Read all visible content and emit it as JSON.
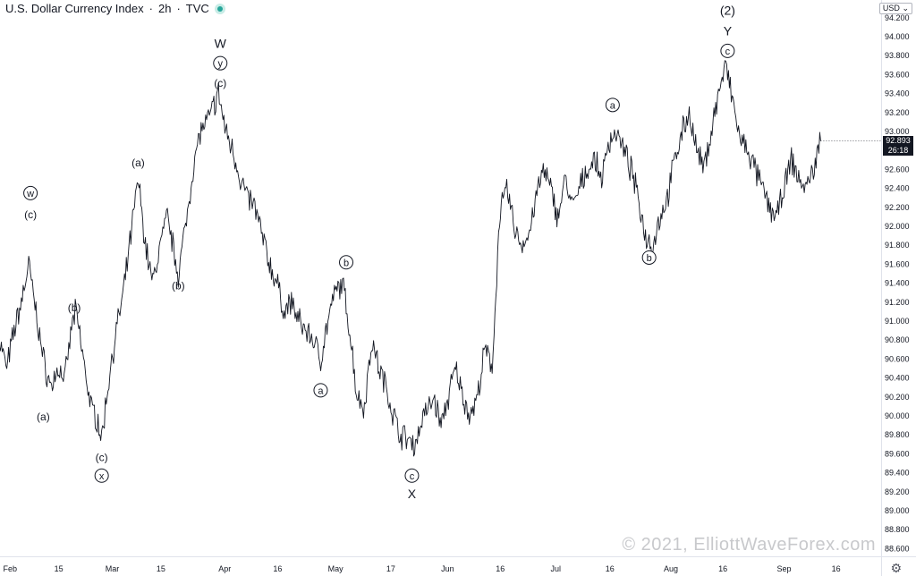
{
  "header": {
    "title": "U.S. Dollar Currency Index",
    "separator1": "·",
    "interval": "2h",
    "separator2": "·",
    "source": "TVC"
  },
  "price_axis": {
    "currency_label": "USD",
    "current_price": "92.893",
    "countdown": "26:18"
  },
  "watermark": "© 2021, ElliottWaveForex.com",
  "colors": {
    "price_line": "#131722",
    "axis_text": "#131722",
    "status_green": "#26a69a",
    "price_box_bg": "#131722",
    "watermark": "#c8c9cc"
  },
  "icons": {
    "settings": "gear-icon",
    "status": "status-dot-icon"
  },
  "chart_data": {
    "type": "line",
    "ylim": [
      88.5,
      94.4
    ],
    "y_ticks": [
      "88.600",
      "88.800",
      "89.000",
      "89.200",
      "89.400",
      "89.600",
      "89.800",
      "90.000",
      "90.200",
      "90.400",
      "90.600",
      "90.800",
      "91.000",
      "91.200",
      "91.400",
      "91.600",
      "91.800",
      "92.000",
      "92.200",
      "92.400",
      "92.600",
      "92.800",
      "93.000",
      "93.200",
      "93.400",
      "93.600",
      "93.800",
      "94.000",
      "94.200"
    ],
    "x_ticks": [
      {
        "day": 0,
        "label": "Feb"
      },
      {
        "day": 14,
        "label": "15"
      },
      {
        "day": 28,
        "label": "Mar"
      },
      {
        "day": 42,
        "label": "15"
      },
      {
        "day": 59,
        "label": "Apr"
      },
      {
        "day": 74,
        "label": "16"
      },
      {
        "day": 89,
        "label": "May"
      },
      {
        "day": 105,
        "label": "17"
      },
      {
        "day": 120,
        "label": "Jun"
      },
      {
        "day": 135,
        "label": "16"
      },
      {
        "day": 150,
        "label": "Jul"
      },
      {
        "day": 165,
        "label": "16"
      },
      {
        "day": 181,
        "label": "Aug"
      },
      {
        "day": 196,
        "label": "16"
      },
      {
        "day": 212,
        "label": "Sep"
      },
      {
        "day": 227,
        "label": "16"
      }
    ],
    "series": [
      {
        "points": [
          [
            -1,
            90.8
          ],
          [
            1,
            90.5
          ],
          [
            3,
            90.9
          ],
          [
            5,
            91.2
          ],
          [
            7,
            91.6
          ],
          [
            9,
            91.1
          ],
          [
            11,
            90.6
          ],
          [
            13,
            90.3
          ],
          [
            15,
            90.5
          ],
          [
            17,
            90.4
          ],
          [
            19,
            91.0
          ],
          [
            20,
            91.1
          ],
          [
            22,
            90.6
          ],
          [
            24,
            90.1
          ],
          [
            26,
            89.95
          ],
          [
            27,
            89.75
          ],
          [
            29,
            90.4
          ],
          [
            31,
            90.9
          ],
          [
            33,
            91.3
          ],
          [
            35,
            91.9
          ],
          [
            37,
            92.5
          ],
          [
            39,
            91.8
          ],
          [
            41,
            91.4
          ],
          [
            43,
            91.8
          ],
          [
            45,
            92.1
          ],
          [
            47,
            91.7
          ],
          [
            48,
            91.5
          ],
          [
            50,
            92.0
          ],
          [
            52,
            92.6
          ],
          [
            54,
            93.0
          ],
          [
            56,
            93.1
          ],
          [
            58,
            93.3
          ],
          [
            59,
            93.4
          ],
          [
            61,
            93.0
          ],
          [
            63,
            92.8
          ],
          [
            65,
            92.5
          ],
          [
            67,
            92.3
          ],
          [
            69,
            92.2
          ],
          [
            71,
            91.9
          ],
          [
            73,
            91.6
          ],
          [
            75,
            91.4
          ],
          [
            77,
            91.1
          ],
          [
            79,
            91.2
          ],
          [
            81,
            91.0
          ],
          [
            83,
            90.9
          ],
          [
            85,
            90.8
          ],
          [
            87,
            90.6
          ],
          [
            89,
            91.0
          ],
          [
            91,
            91.3
          ],
          [
            93,
            91.4
          ],
          [
            95,
            90.9
          ],
          [
            97,
            90.2
          ],
          [
            99,
            90.1
          ],
          [
            101,
            90.8
          ],
          [
            103,
            90.5
          ],
          [
            105,
            90.3
          ],
          [
            107,
            90.0
          ],
          [
            109,
            89.8
          ],
          [
            111,
            89.75
          ],
          [
            113,
            89.7
          ],
          [
            115,
            90.0
          ],
          [
            117,
            90.1
          ],
          [
            118,
            90.2
          ],
          [
            120,
            89.9
          ],
          [
            122,
            90.2
          ],
          [
            124,
            90.5
          ],
          [
            126,
            90.2
          ],
          [
            128,
            90.0
          ],
          [
            130,
            90.2
          ],
          [
            132,
            90.7
          ],
          [
            134,
            90.5
          ],
          [
            135,
            91.3
          ],
          [
            136,
            92.1
          ],
          [
            138,
            92.4
          ],
          [
            140,
            92.0
          ],
          [
            142,
            91.8
          ],
          [
            144,
            91.9
          ],
          [
            146,
            92.3
          ],
          [
            148,
            92.6
          ],
          [
            150,
            92.4
          ],
          [
            152,
            92.1
          ],
          [
            154,
            92.5
          ],
          [
            156,
            92.2
          ],
          [
            158,
            92.4
          ],
          [
            160,
            92.6
          ],
          [
            162,
            92.7
          ],
          [
            164,
            92.5
          ],
          [
            166,
            92.9
          ],
          [
            168,
            93.0
          ],
          [
            170,
            92.8
          ],
          [
            172,
            92.6
          ],
          [
            174,
            92.3
          ],
          [
            176,
            91.9
          ],
          [
            178,
            91.8
          ],
          [
            180,
            92.1
          ],
          [
            182,
            92.3
          ],
          [
            184,
            92.7
          ],
          [
            186,
            93.0
          ],
          [
            188,
            93.2
          ],
          [
            190,
            92.8
          ],
          [
            192,
            92.6
          ],
          [
            194,
            93.0
          ],
          [
            196,
            93.4
          ],
          [
            198,
            93.7
          ],
          [
            200,
            93.3
          ],
          [
            202,
            92.9
          ],
          [
            204,
            92.8
          ],
          [
            206,
            92.6
          ],
          [
            208,
            92.4
          ],
          [
            210,
            92.2
          ],
          [
            212,
            92.1
          ],
          [
            214,
            92.4
          ],
          [
            216,
            92.7
          ],
          [
            218,
            92.5
          ],
          [
            220,
            92.4
          ],
          [
            222,
            92.6
          ],
          [
            224,
            92.9
          ]
        ]
      }
    ],
    "annotations": [
      {
        "text": "w",
        "circled": true,
        "day": 7.5,
        "price": 92.35
      },
      {
        "text": "(c)",
        "circled": false,
        "day": 7.5,
        "price": 92.13
      },
      {
        "text": "(a)",
        "circled": false,
        "day": 11,
        "price": 90.0
      },
      {
        "text": "(b)",
        "circled": false,
        "day": 19.5,
        "price": 91.15
      },
      {
        "text": "(c)",
        "circled": false,
        "day": 27,
        "price": 89.57
      },
      {
        "text": "x",
        "circled": true,
        "day": 27,
        "price": 89.37
      },
      {
        "text": "(a)",
        "circled": false,
        "day": 37,
        "price": 92.68
      },
      {
        "text": "(b)",
        "circled": false,
        "day": 48,
        "price": 91.38
      },
      {
        "text": "W",
        "circled": false,
        "day": 59.5,
        "price": 93.93
      },
      {
        "text": "y",
        "circled": true,
        "day": 59.5,
        "price": 93.72
      },
      {
        "text": "(c)",
        "circled": false,
        "day": 59.5,
        "price": 93.52
      },
      {
        "text": "a",
        "circled": true,
        "day": 87,
        "price": 90.27
      },
      {
        "text": "b",
        "circled": true,
        "day": 94,
        "price": 91.62
      },
      {
        "text": "c",
        "circled": true,
        "day": 112,
        "price": 89.37
      },
      {
        "text": "X",
        "circled": false,
        "day": 112,
        "price": 89.18
      },
      {
        "text": "a",
        "circled": true,
        "day": 167,
        "price": 93.28
      },
      {
        "text": "b",
        "circled": true,
        "day": 177,
        "price": 91.67
      },
      {
        "text": "(2)",
        "circled": false,
        "day": 198.5,
        "price": 94.28
      },
      {
        "text": "Y",
        "circled": false,
        "day": 198.5,
        "price": 94.06
      },
      {
        "text": "c",
        "circled": true,
        "day": 198.5,
        "price": 93.85
      }
    ]
  }
}
